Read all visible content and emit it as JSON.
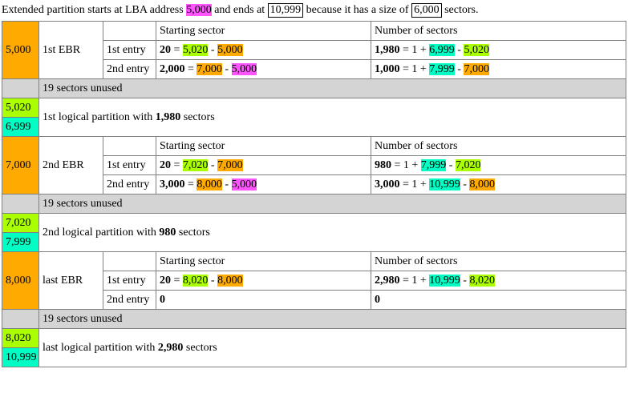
{
  "colors": {
    "pink": "#ff55ff",
    "orange": "#ffaa00",
    "lime": "#aaff00",
    "cyan": "#00ffc4",
    "unused": "#d4d4d4",
    "border": "#808080"
  },
  "intro": {
    "t1": "Extended partition starts at LBA address ",
    "v1": "5,000",
    "t2": " and ends at ",
    "v2": "10,999",
    "t3": " because it has a size of ",
    "v3": "6,000",
    "t4": " sectors."
  },
  "headers": {
    "start": "Starting sector",
    "num": "Number of sectors"
  },
  "entries": {
    "e1": "1st entry",
    "e2": "2nd entry"
  },
  "unused": "19 sectors unused",
  "ebr1": {
    "lba": "5,000",
    "name": "1st EBR",
    "r1": {
      "s_bold": "20",
      "s_eq": " = ",
      "s_a": "5,020",
      "s_m": " - ",
      "s_b": "5,000",
      "n_bold": "1,980",
      "n_eq": " = 1 + ",
      "n_a": "6,999",
      "n_m": " - ",
      "n_b": "5,020"
    },
    "r2": {
      "s_bold": "2,000",
      "s_eq": " = ",
      "s_a": "7,000",
      "s_m": " - ",
      "s_b": "5,000",
      "n_bold": "1,000",
      "n_eq": " = 1 + ",
      "n_a": "7,999",
      "n_m": " - ",
      "n_b": "7,000"
    }
  },
  "part1": {
    "lba_a": "5,020",
    "lba_b": "6,999",
    "t1": "1st logical partition with ",
    "bold": "1,980",
    "t2": " sectors"
  },
  "ebr2": {
    "lba": "7,000",
    "name": "2nd EBR",
    "r1": {
      "s_bold": "20",
      "s_eq": " = ",
      "s_a": "7,020",
      "s_m": " - ",
      "s_b": "7,000",
      "n_bold": "980",
      "n_eq": " = 1 + ",
      "n_a": "7,999",
      "n_m": " - ",
      "n_b": "7,020"
    },
    "r2": {
      "s_bold": "3,000",
      "s_eq": " = ",
      "s_a": "8,000",
      "s_m": " - ",
      "s_b": "5,000",
      "n_bold": "3,000",
      "n_eq": " = 1 + ",
      "n_a": "10,999",
      "n_m": " - ",
      "n_b": "8,000"
    }
  },
  "part2": {
    "lba_a": "7,020",
    "lba_b": "7,999",
    "t1": "2nd logical partition with ",
    "bold": "980",
    "t2": " sectors"
  },
  "ebr3": {
    "lba": "8,000",
    "name": "last EBR",
    "r1": {
      "s_bold": "20",
      "s_eq": " = ",
      "s_a": "8,020",
      "s_m": " - ",
      "s_b": "8,000",
      "n_bold": "2,980",
      "n_eq": " = 1 + ",
      "n_a": "10,999",
      "n_m": " - ",
      "n_b": "8,020"
    },
    "r2": {
      "s_bold": "0",
      "n_bold": "0"
    }
  },
  "part3": {
    "lba_a": "8,020",
    "lba_b": "10,999",
    "t1": "last logical partition with ",
    "bold": "2,980",
    "t2": " sectors"
  }
}
